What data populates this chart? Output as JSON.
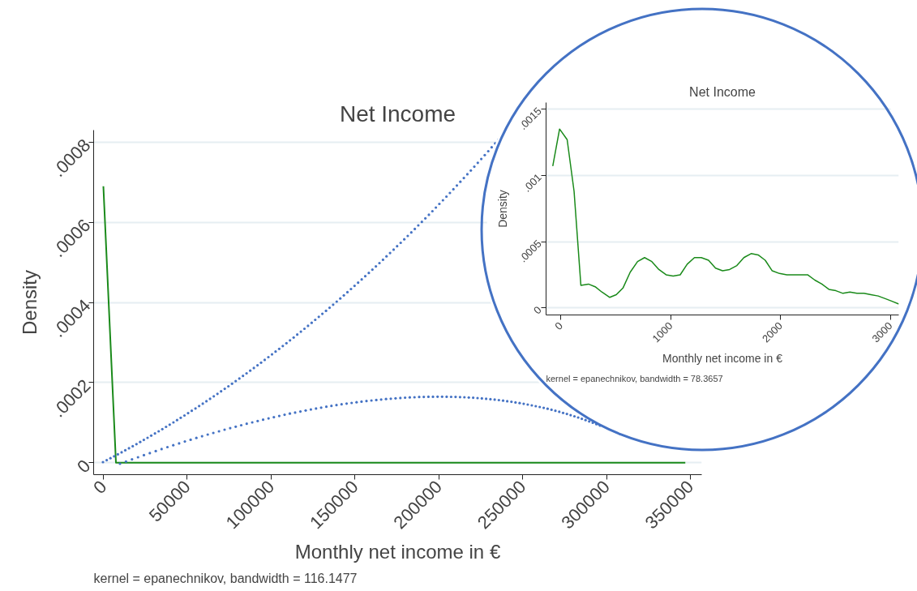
{
  "chart_data": [
    {
      "type": "line",
      "title": "Net Income",
      "xlabel": "Monthly net income in €",
      "ylabel": "Density",
      "annotations": [
        "kernel = epanechnikov, bandwidth = 116.1477"
      ],
      "x": [
        0,
        7500,
        347000
      ],
      "series": [
        {
          "color": "#1a8a1a",
          "values": [
            0.00069,
            0,
            0
          ]
        }
      ],
      "xlim": [
        -5800,
        356800
      ],
      "xticks": [
        0,
        50000,
        100000,
        150000,
        200000,
        250000,
        300000,
        350000
      ],
      "ylim": [
        -3e-05,
        0.00083
      ],
      "yticks": [
        {
          "value": 0,
          "label": "0"
        },
        {
          "value": 0.0002,
          "label": ".0002"
        },
        {
          "value": 0.0004,
          "label": ".0004"
        },
        {
          "value": 0.0006,
          "label": ".0006"
        },
        {
          "value": 0.0008,
          "label": ".0008"
        }
      ],
      "grid": "y"
    },
    {
      "type": "line",
      "title": "Net Income",
      "xlabel": "Monthly net income in €",
      "ylabel": "Density",
      "annotations": [
        "kernel = epanechnikov, bandwidth = 78.3657"
      ],
      "x": [
        -74,
        -12,
        57,
        120,
        182,
        251,
        312,
        373,
        445,
        504,
        565,
        631,
        698,
        762,
        828,
        892,
        958,
        1022,
        1086,
        1150,
        1216,
        1278,
        1344,
        1408,
        1472,
        1536,
        1602,
        1666,
        1732,
        1796,
        1860,
        1924,
        1990,
        2057,
        2118,
        2184,
        2246,
        2312,
        2376,
        2440,
        2504,
        2568,
        2631,
        2695,
        2759,
        2823,
        2889,
        2953,
        3015,
        3076
      ],
      "series": [
        {
          "color": "#1a8a1a",
          "values": [
            0.00107,
            0.00135,
            0.00127,
            0.00088,
            0.00017,
            0.00018,
            0.00016,
            0.00012,
            8e-05,
            0.0001,
            0.00015,
            0.00027,
            0.00035,
            0.00038,
            0.00035,
            0.00029,
            0.00025,
            0.00024,
            0.00025,
            0.00033,
            0.00038,
            0.00038,
            0.00036,
            0.0003,
            0.00028,
            0.00029,
            0.00032,
            0.00038,
            0.00041,
            0.0004,
            0.00036,
            0.00028,
            0.00026,
            0.00025,
            0.00025,
            0.00025,
            0.00025,
            0.00021,
            0.00018,
            0.00014,
            0.00013,
            0.00011,
            0.00012,
            0.00011,
            0.00011,
            0.0001,
            9e-05,
            7e-05,
            5e-05,
            3e-05
          ]
        }
      ],
      "xlim": [
        -135,
        3076
      ],
      "xticks": [
        0,
        1000,
        2000,
        3000
      ],
      "ylim": [
        -5.3e-05,
        0.00155
      ],
      "yticks": [
        {
          "value": 0,
          "label": "0"
        },
        {
          "value": 0.0005,
          "label": ".0005"
        },
        {
          "value": 0.001,
          "label": ".001"
        },
        {
          "value": 0.0015,
          "label": ".0015"
        }
      ],
      "grid": "y"
    }
  ]
}
